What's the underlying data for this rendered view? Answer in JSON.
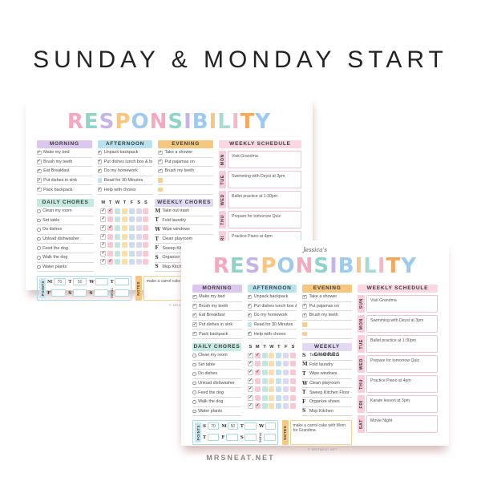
{
  "page_title": "SUNDAY & MONDAY START",
  "footer": "MRSNEAT.NET",
  "colors": {
    "heading_text": "#232323",
    "morning_header_bg": "#dcc8ee",
    "afternoon_header_bg": "#b9e2ef",
    "evening_header_bg": "#f6c77e",
    "schedule_header_bg": "#fad7e2",
    "daily_header_bg": "#c6e9e3",
    "weekly_header_bg": "#e4d9f3",
    "schedule_tab_bg": "#f8cedb",
    "schedule_box_border": "#f2c2d2",
    "points_tab_bg": "#c9e7f1",
    "points_border": "#aed7e6",
    "notes_tab_bg": "#f7c87d",
    "notes_border": "#f1d193",
    "teal_box": "#c0e5ef",
    "orange_box": "#f8cf8e",
    "check_color": "#4c4c4c",
    "title_letter_colors": [
      "#f4a9bc",
      "#8fd4c6",
      "#c4b5e6",
      "#f9c583",
      "#9ecaed",
      "#f4a9bc",
      "#8fd4c6",
      "#c4b5e6",
      "#9ecaed",
      "#f9c583",
      "#aadbd2",
      "#f4b9c9",
      "#f5a85a",
      "#9ecaed"
    ],
    "grid_column_colors": [
      "#ffffff",
      "#f6c9d4",
      "#c2e7e3",
      "#fbdfa9",
      "#c5def1",
      "#ded7f0",
      "#f6c9d4"
    ]
  },
  "planners": [
    {
      "id": "monday-start",
      "owner_name": "",
      "title": "RESPONSIBILITY",
      "copyright": "© MRSNEAT.NET",
      "sections": {
        "morning": {
          "label": "MORNING",
          "items": [
            {
              "text": "Make my bed",
              "state": "checked"
            },
            {
              "text": "Brush my teeth",
              "state": "checked"
            },
            {
              "text": "Eat Breakfast",
              "state": "checked"
            },
            {
              "text": "Put dishes in sink",
              "state": "checked"
            },
            {
              "text": "Pack backpack",
              "state": "checked"
            }
          ]
        },
        "afternoon": {
          "label": "AFTERNOON",
          "items": [
            {
              "text": "Unpack backpack",
              "state": "checked"
            },
            {
              "text": "Put dishes lunch box & bottle",
              "state": "checked"
            },
            {
              "text": "Do my homework",
              "state": "checked"
            },
            {
              "text": "Read for 30 Minutes",
              "state": "teal"
            },
            {
              "text": "Help with chores",
              "state": "checked"
            }
          ]
        },
        "evening": {
          "label": "EVENING",
          "items": [
            {
              "text": "Take a shower",
              "state": "checked"
            },
            {
              "text": "Put pajamas on",
              "state": "checked"
            },
            {
              "text": "Brush my teeth",
              "state": "checked"
            },
            {
              "text": "",
              "state": "orange"
            },
            {
              "text": "",
              "state": "orange"
            }
          ]
        },
        "weekly_schedule": {
          "label": "WEEKLY  SCHEDULE",
          "rows": [
            {
              "day": "MON",
              "text": "Visit Grandma"
            },
            {
              "day": "TUE",
              "text": "Swimming with Deysi at 3pm"
            },
            {
              "day": "WED",
              "text": "Ballet practice at 1:30pm"
            },
            {
              "day": "THU",
              "text": "Prepare for tomorrow Quiz"
            },
            {
              "day": "FRI",
              "text": "Practice Piano at 4pm"
            }
          ]
        },
        "daily_chores": {
          "label": "DAILY  CHORES",
          "items": [
            {
              "text": "Clean my room"
            },
            {
              "text": "Set table"
            },
            {
              "text": "Do dishes"
            },
            {
              "text": "Unload dishwasher"
            },
            {
              "text": "Feed the dog"
            },
            {
              "text": "Walk the dog"
            },
            {
              "text": "Water plants"
            }
          ]
        },
        "chore_grid": {
          "days": [
            "M",
            "T",
            "W",
            "T",
            "F",
            "S",
            "S"
          ],
          "checks": [
            [
              1,
              1,
              0,
              0,
              0,
              0,
              0
            ],
            [
              1,
              0,
              0,
              0,
              0,
              0,
              0
            ],
            [
              1,
              1,
              0,
              0,
              0,
              0,
              0
            ],
            [
              1,
              0,
              0,
              0,
              0,
              0,
              0
            ],
            [
              1,
              0,
              0,
              0,
              0,
              0,
              0
            ],
            [
              1,
              0,
              0,
              0,
              0,
              0,
              0
            ],
            [
              1,
              1,
              0,
              0,
              0,
              0,
              0
            ]
          ]
        },
        "weekly_chores": {
          "label": "WEEKLY  CHORES",
          "items": [
            {
              "day": "M",
              "text": "Take out trash"
            },
            {
              "day": "T",
              "text": "Fold laundry"
            },
            {
              "day": "W",
              "text": "Wipe windows"
            },
            {
              "day": "T",
              "text": "Clean playroom"
            },
            {
              "day": "F",
              "text": "Sweep Kitchen Floor"
            },
            {
              "day": "S",
              "text": "Organize shoes"
            },
            {
              "day": "S",
              "text": "Mop Kitchen"
            }
          ]
        },
        "points": {
          "label": "POINTS",
          "total_label": "TOTAL",
          "rows": [
            [
              {
                "day": "M",
                "value": "70"
              },
              {
                "day": "T",
                "value": "50"
              },
              {
                "day": "W",
                "value": ""
              },
              {
                "day": "T",
                "value": ""
              }
            ],
            [
              {
                "day": "F",
                "value": ""
              },
              {
                "day": "S",
                "value": ""
              },
              {
                "day": "S",
                "value": ""
              },
              {
                "day": "TOTAL",
                "value": "",
                "is_total": true
              }
            ]
          ]
        },
        "notes": {
          "label": "NOTES",
          "text": "make a carrot cake with"
        }
      }
    },
    {
      "id": "sunday-start",
      "owner_name": "Jessica's",
      "title": "RESPONSIBILITY",
      "copyright": "© MRSNEAT.NET",
      "sections": {
        "morning": {
          "label": "MORNING",
          "items": [
            {
              "text": "Make my bed",
              "state": "checked"
            },
            {
              "text": "Brush my teeth",
              "state": "checked"
            },
            {
              "text": "Eat Breakfast",
              "state": "checked"
            },
            {
              "text": "Put dishes in sink",
              "state": "checked"
            },
            {
              "text": "Pack backpack",
              "state": "checked"
            }
          ]
        },
        "afternoon": {
          "label": "AFTERNOON",
          "items": [
            {
              "text": "Unpack backpack",
              "state": "checked"
            },
            {
              "text": "Put dishes lunch box & bottle",
              "state": "checked"
            },
            {
              "text": "Do my homework",
              "state": "checked"
            },
            {
              "text": "Read for 30 Minutes",
              "state": "teal"
            },
            {
              "text": "Help with chores",
              "state": "checked"
            }
          ]
        },
        "evening": {
          "label": "EVENING",
          "items": [
            {
              "text": "Take a shower",
              "state": "checked"
            },
            {
              "text": "Put pajamas on",
              "state": "checked"
            },
            {
              "text": "Brush my teeth",
              "state": "checked"
            },
            {
              "text": "",
              "state": "orange"
            },
            {
              "text": "",
              "state": "orange"
            }
          ]
        },
        "weekly_schedule": {
          "label": "WEEKLY  SCHEDULE",
          "rows": [
            {
              "day": "SUN",
              "text": "Visit Grandma"
            },
            {
              "day": "MON",
              "text": "Swimming with Deysi at 3pm"
            },
            {
              "day": "TUE",
              "text": "Ballet practice at 1:30pm"
            },
            {
              "day": "WED",
              "text": "Prepare for tomorrow Quiz"
            },
            {
              "day": "THU",
              "text": "Practice Piano at 4pm"
            },
            {
              "day": "FRI",
              "text": "Karate lesson at 3pm"
            },
            {
              "day": "SAT",
              "text": "Movie Night"
            }
          ]
        },
        "daily_chores": {
          "label": "DAILY  CHORES",
          "items": [
            {
              "text": "Clean my room"
            },
            {
              "text": "Set table"
            },
            {
              "text": "Do dishes"
            },
            {
              "text": "Unload dishwasher"
            },
            {
              "text": "Feed the dog"
            },
            {
              "text": "Walk the dog"
            },
            {
              "text": "Water plants"
            }
          ]
        },
        "chore_grid": {
          "days": [
            "S",
            "M",
            "T",
            "W",
            "T",
            "F",
            "S"
          ],
          "checks": [
            [
              1,
              1,
              0,
              0,
              0,
              0,
              0
            ],
            [
              1,
              0,
              0,
              0,
              0,
              0,
              0
            ],
            [
              1,
              1,
              0,
              0,
              0,
              0,
              0
            ],
            [
              1,
              0,
              0,
              0,
              0,
              0,
              0
            ],
            [
              1,
              0,
              0,
              0,
              0,
              0,
              0
            ],
            [
              1,
              0,
              0,
              0,
              0,
              0,
              0
            ],
            [
              1,
              1,
              0,
              0,
              0,
              0,
              0
            ]
          ]
        },
        "weekly_chores": {
          "label": "WEEKLY  CHORES",
          "items": [
            {
              "day": "S",
              "text": "Take out trash"
            },
            {
              "day": "M",
              "text": "Fold laundry"
            },
            {
              "day": "T",
              "text": "Wipe windows"
            },
            {
              "day": "W",
              "text": "Clean playroom"
            },
            {
              "day": "T",
              "text": "Sweep Kitchen Floor"
            },
            {
              "day": "F",
              "text": "Organize shoes"
            },
            {
              "day": "S",
              "text": "Mop Kitchen"
            }
          ]
        },
        "points": {
          "label": "POINTS",
          "total_label": "TOTAL",
          "rows": [
            [
              {
                "day": "S",
                "value": "70"
              },
              {
                "day": "M",
                "value": "50"
              },
              {
                "day": "T",
                "value": ""
              },
              {
                "day": "W",
                "value": ""
              }
            ],
            [
              {
                "day": "T",
                "value": ""
              },
              {
                "day": "F",
                "value": ""
              },
              {
                "day": "S",
                "value": ""
              },
              {
                "day": "TOTAL",
                "value": "",
                "is_total": true
              }
            ]
          ]
        },
        "notes": {
          "label": "NOTES",
          "text": "make a carrot cake with Mom for Grandma"
        }
      }
    }
  ]
}
